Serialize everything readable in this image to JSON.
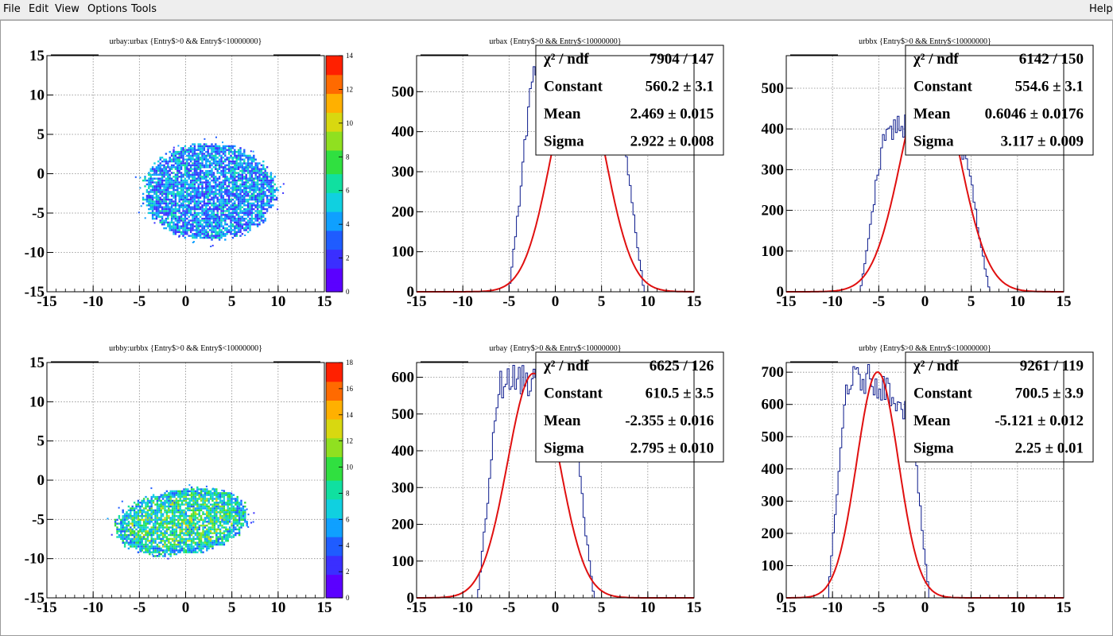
{
  "menu": {
    "file": "File",
    "edit": "Edit",
    "view": "View",
    "options": "Options",
    "tools": "Tools",
    "help": "Help"
  },
  "colors": {
    "hist_line": "#0b1a8c",
    "fit_line": "#e01010",
    "grid": "#888888",
    "palette": [
      "#5b00ff",
      "#3a2fff",
      "#1f5cff",
      "#0fa0ff",
      "#10d0e0",
      "#10e0a0",
      "#30e040",
      "#90e020",
      "#d8d810",
      "#ffb000",
      "#ff6a00",
      "#ff2000"
    ]
  },
  "pads": [
    {
      "title": "urbay:urbax {Entry$>0 && Entry$<10000000}",
      "kind": "2d",
      "xticks": [
        "-15",
        "-10",
        "-5",
        "0",
        "5",
        "10",
        "15"
      ],
      "yticks": [
        "-15",
        "-10",
        "-5",
        "0",
        "5",
        "10",
        "15"
      ],
      "zticks": [
        "0",
        "2",
        "4",
        "6",
        "8",
        "10",
        "12",
        "14"
      ]
    },
    {
      "title": "urbax {Entry$>0 && Entry$<10000000}",
      "kind": "1d",
      "xticks": [
        "-15",
        "-10",
        "-5",
        "0",
        "5",
        "10",
        "15"
      ],
      "yticks": [
        "0",
        "100",
        "200",
        "300",
        "400",
        "500"
      ],
      "stats": [
        {
          "label": "χ² / ndf",
          "value": "7904 / 147"
        },
        {
          "label": "Constant",
          "value": "560.2 ± 3.1"
        },
        {
          "label": "Mean",
          "value": "2.469 ± 0.015"
        },
        {
          "label": "Sigma",
          "value": "2.922 ± 0.008"
        }
      ]
    },
    {
      "title": "urbbx {Entry$>0 && Entry$<10000000}",
      "kind": "1d",
      "xticks": [
        "-15",
        "-10",
        "-5",
        "0",
        "5",
        "10",
        "15"
      ],
      "yticks": [
        "0",
        "100",
        "200",
        "300",
        "400",
        "500"
      ],
      "stats": [
        {
          "label": "χ² / ndf",
          "value": "6142 / 150"
        },
        {
          "label": "Constant",
          "value": "554.6 ± 3.1"
        },
        {
          "label": "Mean",
          "value": "0.6046 ± 0.0176"
        },
        {
          "label": "Sigma",
          "value": "3.117 ± 0.009"
        }
      ]
    },
    {
      "title": "urbby:urbbx {Entry$>0 && Entry$<10000000}",
      "kind": "2d",
      "xticks": [
        "-15",
        "-10",
        "-5",
        "0",
        "5",
        "10",
        "15"
      ],
      "yticks": [
        "-15",
        "-10",
        "-5",
        "0",
        "5",
        "10",
        "15"
      ],
      "zticks": [
        "0",
        "2",
        "4",
        "6",
        "8",
        "10",
        "12",
        "14",
        "16",
        "18"
      ]
    },
    {
      "title": "urbay {Entry$>0 && Entry$<10000000}",
      "kind": "1d",
      "xticks": [
        "-15",
        "-10",
        "-5",
        "0",
        "5",
        "10",
        "15"
      ],
      "yticks": [
        "0",
        "100",
        "200",
        "300",
        "400",
        "500",
        "600"
      ],
      "stats": [
        {
          "label": "χ² / ndf",
          "value": "6625 / 126"
        },
        {
          "label": "Constant",
          "value": "610.5 ± 3.5"
        },
        {
          "label": "Mean",
          "value": "-2.355 ± 0.016"
        },
        {
          "label": "Sigma",
          "value": "2.795 ± 0.010"
        }
      ]
    },
    {
      "title": "urbby {Entry$>0 && Entry$<10000000}",
      "kind": "1d",
      "xticks": [
        "-15",
        "-10",
        "-5",
        "0",
        "5",
        "10",
        "15"
      ],
      "yticks": [
        "0",
        "100",
        "200",
        "300",
        "400",
        "500",
        "600",
        "700"
      ],
      "stats": [
        {
          "label": "χ² / ndf",
          "value": "9261 / 119"
        },
        {
          "label": "Constant",
          "value": "700.5 ± 3.9"
        },
        {
          "label": "Mean",
          "value": "-5.121 ± 0.012"
        },
        {
          "label": "Sigma",
          "value": "2.25 ± 0.01"
        }
      ]
    }
  ],
  "chart_data": [
    {
      "type": "heatmap",
      "title": "urbay:urbax {Entry$>0 && Entry$<10000000}",
      "xlim": [
        -15,
        15
      ],
      "ylim": [
        -15,
        15
      ],
      "zlim": [
        0,
        14
      ],
      "grid": true,
      "blob": {
        "center_x": 2.5,
        "center_y": -2.2,
        "half_width": 7.4,
        "half_height": 6.3,
        "x_range": [
          -5.3,
          9.5
        ],
        "y_range": [
          -8.5,
          4.1
        ]
      }
    },
    {
      "type": "bar",
      "title": "urbax {Entry$>0 && Entry$<10000000}",
      "xlim": [
        -15,
        15
      ],
      "ylim": [
        0,
        590
      ],
      "grid": true,
      "histogram_x_range": [
        -5,
        9.6
      ],
      "histogram_peak": 590,
      "fit": {
        "constant": 560.2,
        "mean": 2.469,
        "sigma": 2.922
      },
      "stats": {
        "chi2_ndf": "7904 / 147",
        "constant": "560.2 ± 3.1",
        "mean": "2.469 ± 0.015",
        "sigma": "2.922 ± 0.008"
      }
    },
    {
      "type": "bar",
      "title": "urbbx {Entry$>0 && Entry$<10000000}",
      "xlim": [
        -15,
        15
      ],
      "ylim": [
        0,
        580
      ],
      "grid": true,
      "histogram_x_range": [
        -7,
        7
      ],
      "histogram_peak": 410,
      "fit": {
        "constant": 554.6,
        "mean": 0.6046,
        "sigma": 3.117
      },
      "stats": {
        "chi2_ndf": "6142 / 150",
        "constant": "554.6 ± 3.1",
        "mean": "0.6046 ± 0.0176",
        "sigma": "3.117 ± 0.009"
      }
    },
    {
      "type": "heatmap",
      "title": "urbby:urbbx {Entry$>0 && Entry$<10000000}",
      "xlim": [
        -15,
        15
      ],
      "ylim": [
        -15,
        15
      ],
      "zlim": [
        0,
        18
      ],
      "grid": true,
      "blob": {
        "center_x": -0.5,
        "center_y": -5.2,
        "half_width": 7.2,
        "half_height": 4.4,
        "x_range": [
          -7.5,
          7
        ],
        "y_range": [
          -10.2,
          0.8
        ]
      }
    },
    {
      "type": "bar",
      "title": "urbay {Entry$>0 && Entry$<10000000}",
      "xlim": [
        -15,
        15
      ],
      "ylim": [
        0,
        640
      ],
      "grid": true,
      "histogram_x_range": [
        -8.4,
        4.2
      ],
      "histogram_peak": 600,
      "fit": {
        "constant": 610.5,
        "mean": -2.355,
        "sigma": 2.795
      },
      "stats": {
        "chi2_ndf": "6625 / 126",
        "constant": "610.5 ± 3.5",
        "mean": "-2.355 ± 0.016",
        "sigma": "2.795 ± 0.010"
      }
    },
    {
      "type": "bar",
      "title": "urbby {Entry$>0 && Entry$<10000000}",
      "xlim": [
        -15,
        15
      ],
      "ylim": [
        0,
        730
      ],
      "grid": true,
      "histogram_x_range": [
        -10.5,
        0.5
      ],
      "histogram_peak": 685,
      "fit": {
        "constant": 700.5,
        "mean": -5.121,
        "sigma": 2.25
      },
      "stats": {
        "chi2_ndf": "9261 / 119",
        "constant": "700.5 ± 3.9",
        "mean": "-5.121 ± 0.012",
        "sigma": "2.25 ± 0.01"
      }
    }
  ]
}
